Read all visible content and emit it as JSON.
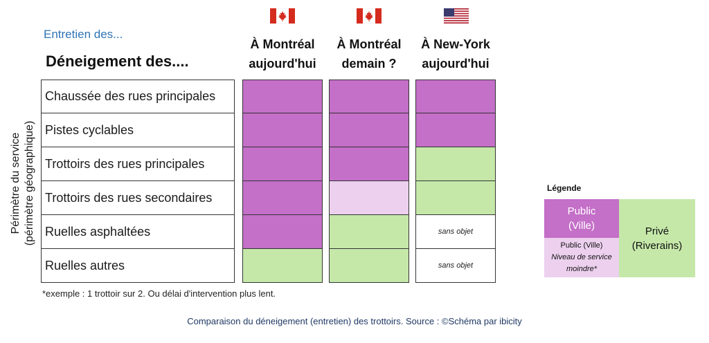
{
  "subtitle": "Entretien des...",
  "heading": "Déneigement des....",
  "y_axis_label_line1": "Périmètre du service",
  "y_axis_label_line2": "(périmètre géographique)",
  "columns": [
    {
      "line1": "À Montréal",
      "line2": "aujourd'hui",
      "flag": "canada-flag-icon"
    },
    {
      "line1": "À Montréal",
      "line2": "demain ?",
      "flag": "canada-flag-icon"
    },
    {
      "line1": "À New-York",
      "line2": "aujourd'hui",
      "flag": "usa-flag-icon"
    }
  ],
  "rows": [
    "Chaussée des rues principales",
    "Pistes cyclables",
    "Trottoirs des rues principales",
    "Trottoirs des rues secondaires",
    "Ruelles asphaltées",
    "Ruelles autres"
  ],
  "cells": [
    [
      "pub",
      "pub",
      "pub"
    ],
    [
      "pub",
      "pub",
      "pub"
    ],
    [
      "pub",
      "pub",
      "priv"
    ],
    [
      "pub",
      "publess",
      "priv"
    ],
    [
      "pub",
      "priv",
      "na"
    ],
    [
      "priv",
      "priv",
      "na"
    ]
  ],
  "na_text": "sans objet",
  "footnote": "*exemple : 1 trottoir sur 2. Ou délai d'intervention plus lent.",
  "caption": "Comparaison du déneigement (entretien) des trottoirs. Source : ©Schéma par ibicity",
  "legend": {
    "title": "Légende",
    "public_line1": "Public",
    "public_line2": "(Ville)",
    "public_less_line1": "Public (Ville)",
    "public_less_line2": "Niveau de service",
    "public_less_line3": "moindre*",
    "private_line1": "Privé",
    "private_line2": "(Riverains)"
  },
  "colors": {
    "public": "#c46fc8",
    "public_less": "#ecd0ee",
    "private": "#c5e8a9",
    "title_blue": "#2e74b5"
  }
}
